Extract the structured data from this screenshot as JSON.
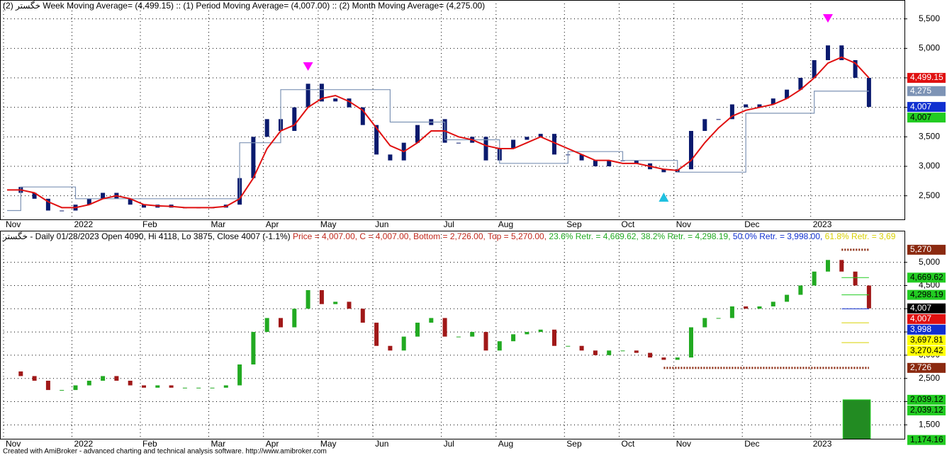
{
  "chart_data": [
    {
      "type": "candle-line",
      "title": "خگستر (2) Week Moving Average= (4,499.15) :: (1) Period Moving Average= (4,007.00) :: (2) Month Moving Average= (4,275.00)",
      "categories": [
        "Nov",
        null,
        null,
        null,
        null,
        "2022",
        null,
        null,
        null,
        null,
        "Feb",
        null,
        null,
        null,
        null,
        "Mar",
        null,
        null,
        null,
        "Apr",
        null,
        null,
        null,
        "May",
        null,
        null,
        null,
        "Jun",
        null,
        null,
        null,
        null,
        "Jul",
        null,
        null,
        null,
        "Aug",
        null,
        null,
        null,
        null,
        "Sep",
        null,
        null,
        null,
        "Oct",
        null,
        null,
        null,
        "Nov",
        null,
        null,
        null,
        null,
        "Dec",
        null,
        null,
        null,
        null,
        "2023",
        null,
        null,
        null,
        null
      ],
      "series": [
        {
          "name": "Price",
          "color": "#0a1a6e",
          "values": [
            2650,
            2550,
            2450,
            2250,
            2250,
            2350,
            2450,
            2550,
            2450,
            2350,
            2300,
            2350,
            2300,
            2300,
            2300,
            2300,
            2350,
            2800,
            3500,
            3800,
            3600,
            4000,
            4400,
            4100,
            4150,
            4000,
            3700,
            3200,
            3100,
            3400,
            3700,
            3800,
            3400,
            3400,
            3500,
            3100,
            3300,
            3450,
            3500,
            3550,
            3200,
            3200,
            3100,
            3000,
            3100,
            3100,
            3050,
            2950,
            2900,
            2950,
            3600,
            3800,
            3800,
            4050,
            4000,
            4050,
            4150,
            4300,
            4500,
            4800,
            5050,
            4800,
            4500,
            4007
          ]
        },
        {
          "name": "Week Moving Average",
          "color": "#e01010",
          "values": [
            2600,
            2600,
            2550,
            2400,
            2300,
            2300,
            2350,
            2450,
            2500,
            2450,
            2350,
            2330,
            2320,
            2300,
            2300,
            2300,
            2320,
            2450,
            2800,
            3300,
            3600,
            3700,
            4000,
            4150,
            4200,
            4100,
            3950,
            3650,
            3350,
            3250,
            3400,
            3600,
            3600,
            3500,
            3450,
            3350,
            3300,
            3300,
            3400,
            3500,
            3400,
            3300,
            3200,
            3100,
            3100,
            3050,
            3050,
            3000,
            2950,
            2930,
            3100,
            3400,
            3650,
            3850,
            3950,
            4000,
            4050,
            4150,
            4300,
            4500,
            4750,
            4850,
            4750,
            4499.15
          ]
        },
        {
          "name": "Month Moving Average",
          "color": "#7d93b5",
          "values": [
            2250,
            2650,
            2650,
            2650,
            2650,
            2450,
            2450,
            2450,
            2450,
            2450,
            2450,
            2450,
            2450,
            2450,
            2450,
            2450,
            2450,
            3400,
            3400,
            3400,
            4300,
            4300,
            4300,
            4300,
            4300,
            4300,
            4300,
            4300,
            3750,
            3750,
            3750,
            3750,
            3450,
            3450,
            3450,
            3450,
            3050,
            3050,
            3050,
            3050,
            3050,
            3250,
            3250,
            3250,
            3250,
            3100,
            3100,
            3100,
            3100,
            2900,
            2900,
            2900,
            2900,
            2900,
            3900,
            3900,
            3900,
            3900,
            3900,
            4275,
            4275,
            4275,
            4275,
            4275
          ]
        }
      ],
      "sell_signals": [
        22,
        60
      ],
      "buy_signals": [
        48
      ],
      "ylim": [
        2100,
        5820
      ],
      "yticks": [
        {
          "value": 2500,
          "label": "2,500"
        },
        {
          "value": 3000,
          "label": "3,000"
        },
        {
          "value": 3500,
          "label": "3,500"
        },
        {
          "value": 4000,
          "label": "4,000"
        },
        {
          "value": 4500,
          "label": "4,500"
        },
        {
          "value": 5000,
          "label": "5,000"
        },
        {
          "value": 5500,
          "label": "5,500"
        }
      ],
      "grid": true,
      "axis_labels": [
        {
          "value": 4499.15,
          "label": "4,499.15",
          "color": "#e01010"
        },
        {
          "value": 4275,
          "label": "4,275",
          "color": "#7d93b5"
        },
        {
          "value": 4007,
          "label": "4,007",
          "color": "#1030d0"
        },
        {
          "value": 4007,
          "label": "4,007",
          "color": "#22cc22"
        }
      ]
    },
    {
      "type": "fibonacci",
      "title": "خگستر - Daily 01/28/2023 Open 4090, Hi 4118, Lo 3875, Close 4007 (-1.1%) ",
      "title_parts": [
        {
          "text": "Price = 4,007.00, C = 4,007.00, Bottom = 2,726.00, Top = 5,270.00, ",
          "color": "#c0281c"
        },
        {
          "text": "23.6% Retr. = 4,669.62, 38.2% Retr. = 4,298.19, ",
          "color": "#22aa22"
        },
        {
          "text": "50.0% Retr. = 3,998.00, ",
          "color": "#1030d0"
        },
        {
          "text": "61.8% Retr. = 3,69",
          "color": "#d8d000"
        }
      ],
      "up_color": "#22aa22",
      "down_color": "#a01818",
      "ylim": [
        1200,
        5680
      ],
      "yticks": [
        {
          "value": 1500,
          "label": "1,500"
        },
        {
          "value": 2000,
          "label": "2,000"
        },
        {
          "value": 2500,
          "label": "2,500"
        },
        {
          "value": 3000,
          "label": "3,000"
        },
        {
          "value": 3500,
          "label": "3,500"
        },
        {
          "value": 4000,
          "label": "4,000"
        },
        {
          "value": 4500,
          "label": "4,500"
        },
        {
          "value": 5000,
          "label": "5,000"
        }
      ],
      "grid": true,
      "axis_labels": [
        {
          "value": 5270,
          "label": "5,270",
          "color": "#8b2a10"
        },
        {
          "value": 4669.62,
          "label": "4,669.62",
          "color": "#22cc22"
        },
        {
          "value": 4298.19,
          "label": "4,298.19",
          "color": "#22cc22"
        },
        {
          "value": 4007,
          "label": "4,007",
          "color": "#000000"
        },
        {
          "value": 4007,
          "label": "4,007",
          "color": "#e01010"
        },
        {
          "value": 3998,
          "label": "3,998",
          "color": "#1030d0"
        },
        {
          "value": 3697.81,
          "label": "3,697.81",
          "color": "#ffff00"
        },
        {
          "value": 3270.42,
          "label": "3,270.42",
          "color": "#ffff00"
        },
        {
          "value": 2726,
          "label": "2,726",
          "color": "#8b2a10"
        },
        {
          "value": 2039.12,
          "label": "2,039.12",
          "color": "#22cc22"
        },
        {
          "value": 2039.12,
          "label": "2,039.12",
          "color": "#22cc22"
        },
        {
          "value": 1174.16,
          "label": "1,174.16",
          "color": "#22cc22"
        }
      ]
    }
  ],
  "footer": "Created with AmiBroker - advanced charting and technical analysis software. http://www.amibroker.com"
}
